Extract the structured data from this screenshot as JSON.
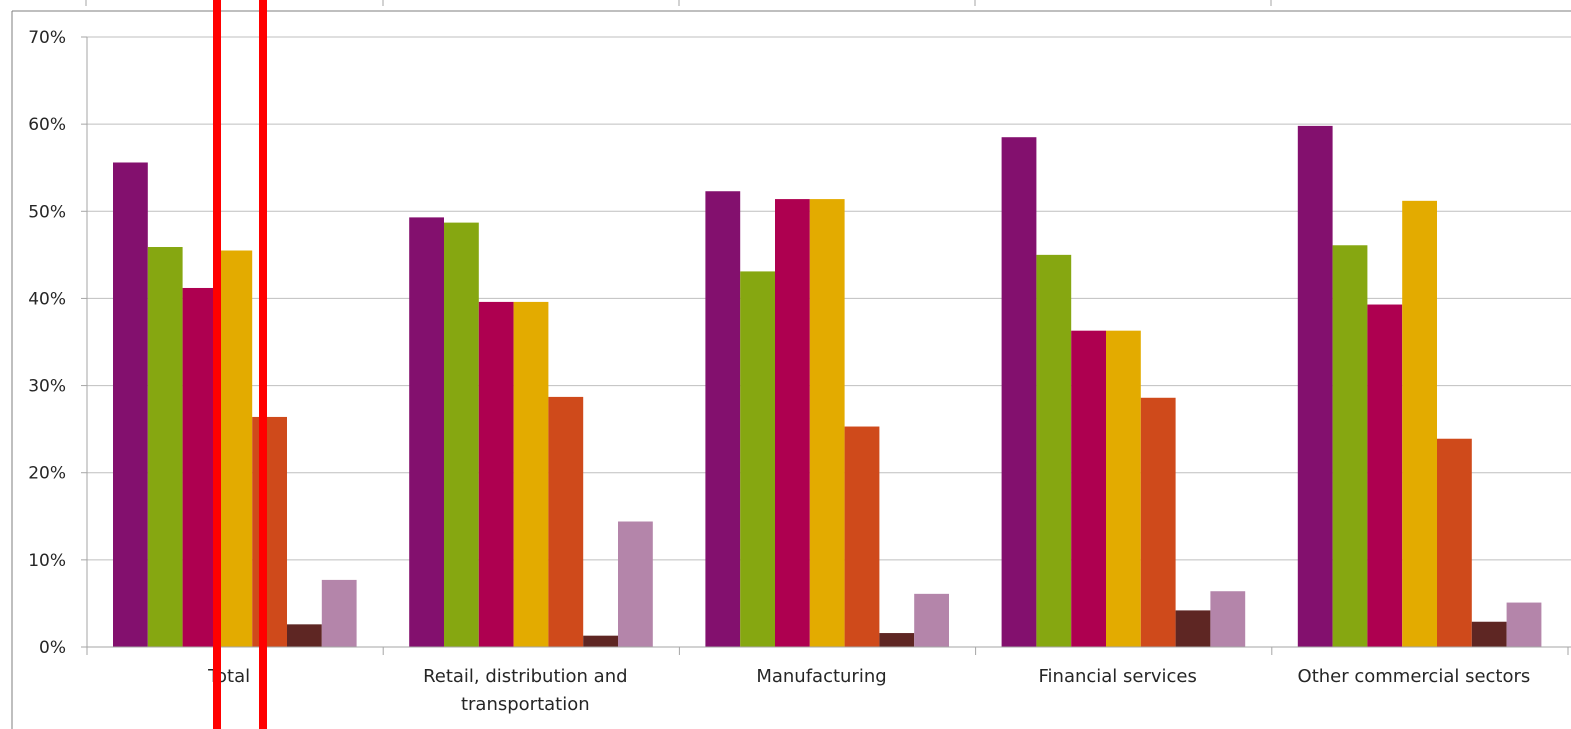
{
  "chart_data": {
    "type": "bar",
    "categories": [
      "Total",
      "Retail, distribution and transportation",
      "Manufacturing",
      "Financial services",
      "Other commercial sectors"
    ],
    "category_label_lines": [
      [
        "Total"
      ],
      [
        "Retail, distribution and",
        "transportation"
      ],
      [
        "Manufacturing"
      ],
      [
        "Financial services"
      ],
      [
        "Other commercial sectors"
      ]
    ],
    "series": [
      {
        "color": "#83106E",
        "values": [
          55.6,
          49.3,
          52.3,
          58.5,
          59.8
        ]
      },
      {
        "color": "#86A711",
        "values": [
          45.9,
          48.7,
          43.1,
          45.0,
          46.1
        ]
      },
      {
        "color": "#AE0050",
        "values": [
          41.2,
          39.6,
          51.4,
          36.3,
          39.3
        ]
      },
      {
        "color": "#E3AB00",
        "values": [
          45.5,
          39.6,
          51.4,
          36.3,
          51.2
        ]
      },
      {
        "color": "#CF4A1B",
        "values": [
          26.4,
          28.7,
          25.3,
          28.6,
          23.9
        ]
      },
      {
        "color": "#5E2623",
        "values": [
          2.6,
          1.3,
          1.6,
          4.2,
          2.9
        ]
      },
      {
        "color": "#B485AA",
        "values": [
          7.7,
          14.4,
          6.1,
          6.4,
          5.1
        ]
      }
    ],
    "y_ticks": [
      "0%",
      "10%",
      "20%",
      "30%",
      "40%",
      "50%",
      "60%",
      "70%"
    ],
    "ylim": [
      0,
      70
    ],
    "xlabel": "",
    "ylabel": "",
    "grid": true,
    "gridline_color": "#BFBFBF",
    "axis_color": "#A6A6A6",
    "highlight_color": "#FF0000"
  }
}
